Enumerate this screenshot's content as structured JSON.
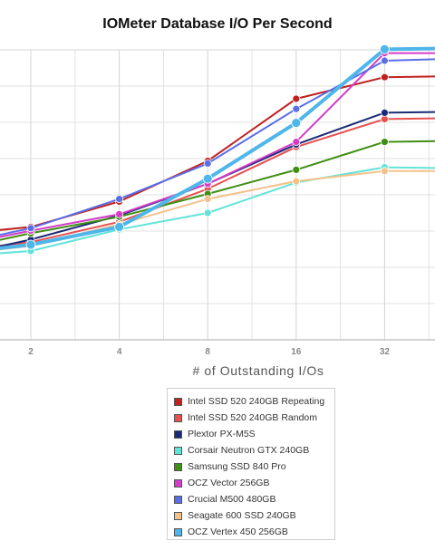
{
  "chart_data": {
    "type": "line",
    "title": "IOMeter Database I/O Per Second",
    "xlabel": "# of Outstanding I/Os",
    "ylabel": "",
    "x": [
      1,
      2,
      4,
      8,
      16,
      32,
      64
    ],
    "x_tick_labels": [
      "2",
      "4",
      "8",
      "16",
      "32"
    ],
    "x_ticks": [
      2,
      4,
      8,
      16,
      32
    ],
    "x_scale": "log2",
    "grid": true,
    "legend_position": "bottom",
    "series": [
      {
        "name": "Intel SSD 520 240GB Repeating",
        "color": "#c0221f",
        "values": [
          4.1,
          4.45,
          5.45,
          7.05,
          9.5,
          10.35,
          10.4
        ]
      },
      {
        "name": "Intel SSD 520 240GB Random",
        "color": "#e8504f",
        "values": [
          3.45,
          3.85,
          4.65,
          5.95,
          7.6,
          8.7,
          8.75
        ]
      },
      {
        "name": "Plextor PX-M5S",
        "color": "#1a2a78",
        "values": [
          3.2,
          3.95,
          4.9,
          6.15,
          7.7,
          8.95,
          9.0
        ]
      },
      {
        "name": "Corsair Neutron GTX 240GB",
        "color": "#62e3d8",
        "values": [
          3.25,
          3.5,
          4.35,
          5.0,
          6.2,
          6.8,
          6.75
        ]
      },
      {
        "name": "Samsung SSD 840 Pro",
        "color": "#3f8f14",
        "values": [
          3.45,
          4.2,
          4.85,
          5.75,
          6.7,
          7.8,
          7.85
        ]
      },
      {
        "name": "OCZ Vector 256GB",
        "color": "#d63cc8",
        "values": [
          3.6,
          4.3,
          4.95,
          6.15,
          7.8,
          11.3,
          11.3
        ]
      },
      {
        "name": "Crucial M500 480GB",
        "color": "#5a6ee8",
        "values": [
          3.65,
          4.4,
          5.55,
          6.95,
          9.1,
          11.0,
          11.1
        ]
      },
      {
        "name": "Seagate 600 SSD 240GB",
        "color": "#f3c28a",
        "values": [
          3.3,
          3.7,
          4.55,
          5.55,
          6.25,
          6.65,
          6.65
        ]
      },
      {
        "name": "OCZ Vertex 450 256GB",
        "color": "#4fb6ea",
        "values": [
          3.35,
          3.75,
          4.45,
          6.35,
          8.55,
          11.45,
          11.5
        ]
      }
    ]
  }
}
